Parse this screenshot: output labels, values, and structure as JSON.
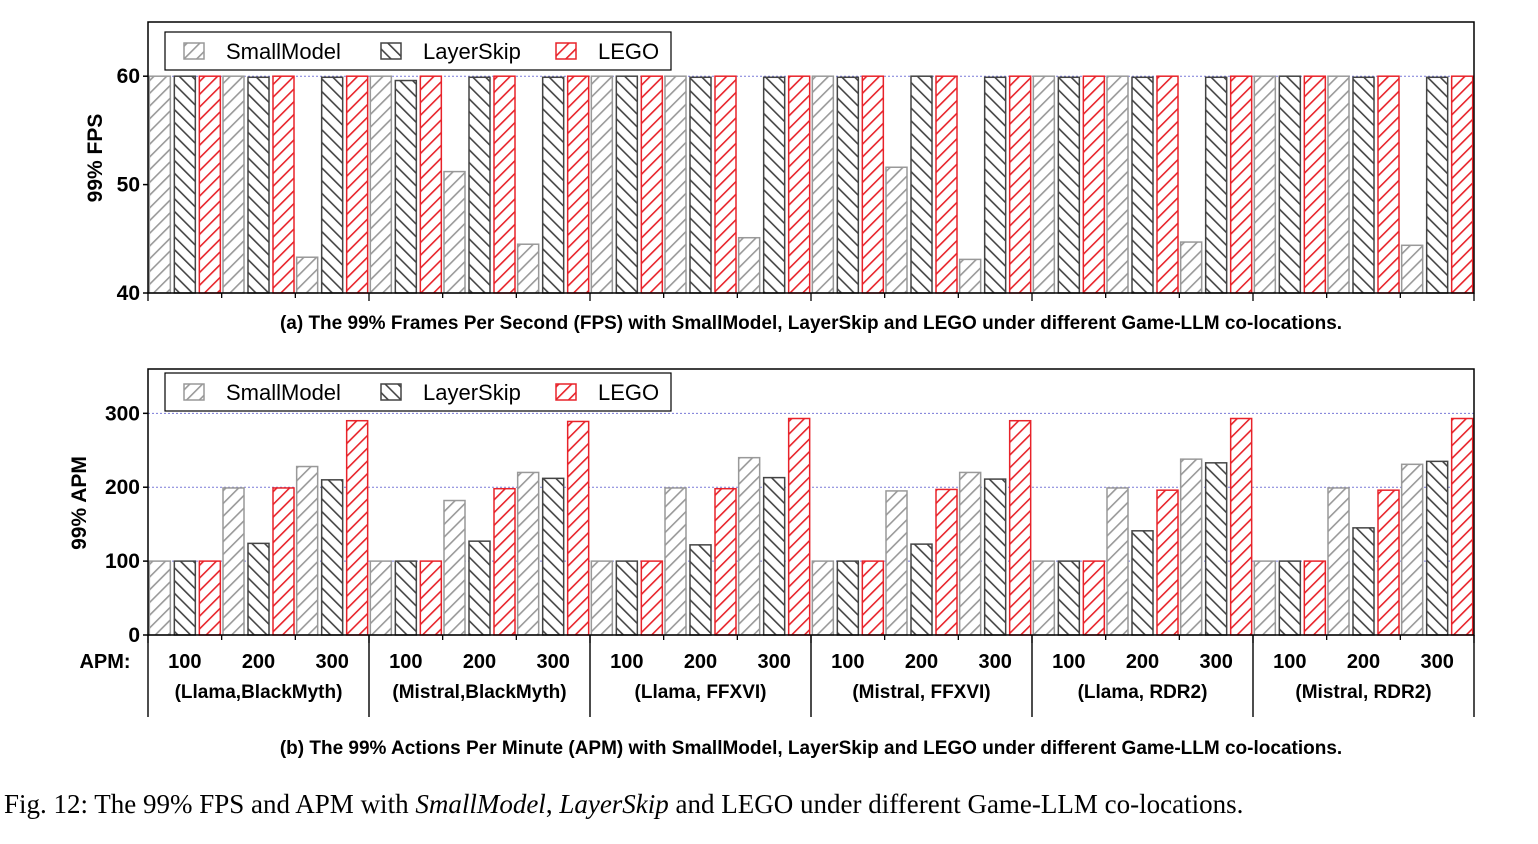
{
  "chart_data": [
    {
      "type": "bar",
      "ylabel": "99% FPS",
      "ylim": [
        40,
        65
      ],
      "yticks": [
        40,
        50,
        60
      ],
      "gridlines": [
        60
      ],
      "legend": {
        "placement": "top-left",
        "entries": [
          "SmallModel",
          "LayerSkip",
          "LEGO"
        ]
      },
      "caption": "(a) The 99% Frames Per Second (FPS) with SmallModel, LayerSkip and LEGO under different Game-LLM co-locations.",
      "series": [
        {
          "name": "SmallModel",
          "values": [
            60,
            60,
            43.3,
            60,
            51.2,
            44.5,
            60,
            60,
            45.1,
            60,
            51.6,
            43.1,
            60,
            60,
            44.7,
            60,
            60,
            44.4
          ]
        },
        {
          "name": "LayerSkip",
          "values": [
            60,
            59.9,
            59.9,
            59.6,
            59.9,
            59.9,
            60,
            59.9,
            59.9,
            59.9,
            60,
            59.9,
            59.9,
            59.9,
            59.9,
            60,
            59.9,
            59.9
          ]
        },
        {
          "name": "LEGO",
          "values": [
            60,
            60,
            60,
            60,
            60,
            60,
            60,
            60,
            60,
            60,
            60,
            60,
            60,
            60,
            60,
            60,
            60,
            60
          ]
        }
      ]
    },
    {
      "type": "bar",
      "ylabel": "99% APM",
      "ylim": [
        0,
        360
      ],
      "yticks": [
        0,
        100,
        200,
        300
      ],
      "gridlines": [
        100,
        200,
        300
      ],
      "legend": {
        "placement": "top-left",
        "entries": [
          "SmallModel",
          "LayerSkip",
          "LEGO"
        ]
      },
      "caption": "(b) The 99% Actions Per Minute (APM) with SmallModel, LayerSkip and LEGO under different Game-LLM co-locations.",
      "series": [
        {
          "name": "SmallModel",
          "values": [
            100,
            199,
            228,
            100,
            182,
            220,
            100,
            199,
            240,
            100,
            195,
            220,
            100,
            199,
            238,
            100,
            199,
            231
          ]
        },
        {
          "name": "LayerSkip",
          "values": [
            100,
            124,
            210,
            100,
            127,
            212,
            100,
            122,
            213,
            100,
            123,
            211,
            100,
            141,
            233,
            100,
            145,
            235
          ]
        },
        {
          "name": "LEGO",
          "values": [
            100,
            199,
            290,
            100,
            198,
            289,
            100,
            198,
            293,
            100,
            197,
            290,
            100,
            196,
            293,
            100,
            196,
            293
          ]
        }
      ]
    }
  ],
  "x_axis": {
    "row_label": "APM:",
    "categories": [
      "100",
      "200",
      "300",
      "100",
      "200",
      "300",
      "100",
      "200",
      "300",
      "100",
      "200",
      "300",
      "100",
      "200",
      "300",
      "100",
      "200",
      "300"
    ],
    "groups": [
      "(Llama,BlackMyth)",
      "(Mistral,BlackMyth)",
      "(Llama, FFXVI)",
      "(Mistral, FFXVI)",
      "(Llama, RDR2)",
      "(Mistral, RDR2)"
    ]
  },
  "colors": {
    "SmallModel": "#999999",
    "LayerSkip": "#444444",
    "LEGO": "#e8232a",
    "grid": "#7a7ad8"
  },
  "figure_caption": {
    "prefix": "Fig. 12: The 99% FPS and APM with ",
    "small": "SmallModel",
    "sep": ", ",
    "layer": "LayerSkip",
    "suffix": " and LEGO under different Game-LLM co-locations."
  }
}
